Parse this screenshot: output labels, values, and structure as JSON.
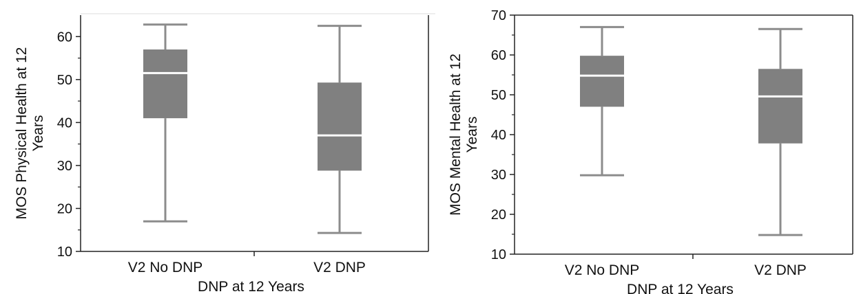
{
  "chart_data": [
    {
      "type": "box",
      "categories": [
        "V2 No DNP",
        "V2 DNP"
      ],
      "boxes": [
        {
          "category": "V2 No DNP",
          "min": 17,
          "q1": 41,
          "median": 51.5,
          "q3": 57,
          "max": 62.8
        },
        {
          "category": "V2 DNP",
          "min": 14.3,
          "q1": 28.8,
          "median": 37,
          "q3": 49.3,
          "max": 62.5
        }
      ],
      "title": "",
      "xlabel": "DNP at 12 Years",
      "ylabel": "MOS Physical Health at 12 Years",
      "ylim": [
        10,
        65
      ],
      "yticks": [
        10,
        20,
        30,
        40,
        50,
        60
      ],
      "colors": {
        "box": "#808080",
        "median": "#ffffff",
        "whisker": "#8c8c8c",
        "axis": "#222222"
      },
      "grid": false
    },
    {
      "type": "box",
      "categories": [
        "V2 No DNP",
        "V2 DNP"
      ],
      "boxes": [
        {
          "category": "V2 No DNP",
          "min": 29.8,
          "q1": 47,
          "median": 54.8,
          "q3": 59.8,
          "max": 67
        },
        {
          "category": "V2 DNP",
          "min": 14.8,
          "q1": 37.8,
          "median": 49.6,
          "q3": 56.5,
          "max": 66.5
        }
      ],
      "title": "",
      "xlabel": "DNP at 12 Years",
      "ylabel": "MOS Mental Health at 12 Years",
      "ylim": [
        10,
        70
      ],
      "yticks": [
        10,
        20,
        30,
        40,
        50,
        60,
        70
      ],
      "colors": {
        "box": "#808080",
        "median": "#ffffff",
        "whisker": "#8c8c8c",
        "axis": "#222222"
      },
      "grid": false
    }
  ]
}
